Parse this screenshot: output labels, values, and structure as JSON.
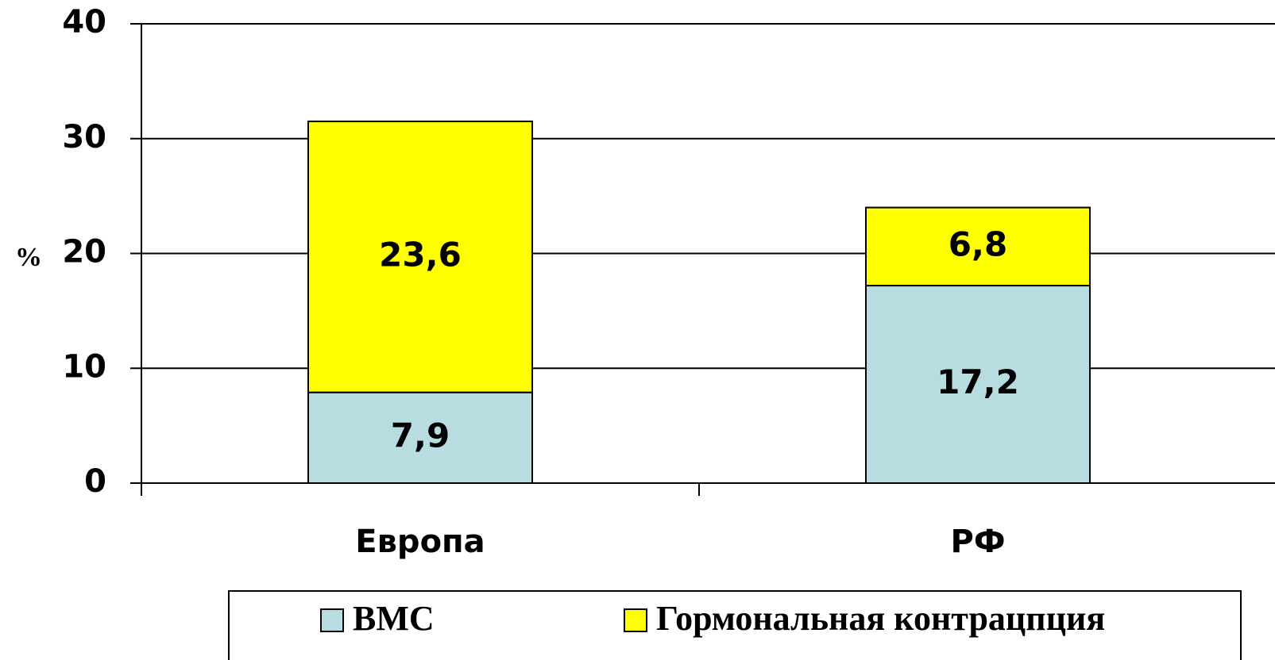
{
  "chart_data": {
    "type": "stacked_bar",
    "ylabel": "%",
    "categories": [
      "Европа",
      "РФ"
    ],
    "series": [
      {
        "name": "ВМС",
        "color": "#b7dde1",
        "values": [
          7.9,
          17.2
        ],
        "value_labels": [
          "7,9",
          "17,2"
        ]
      },
      {
        "name": "Гормональная контрацпция",
        "color": "#ffff00",
        "values": [
          23.6,
          6.8
        ],
        "value_labels": [
          "23,6",
          "6,8"
        ]
      }
    ],
    "ylim": [
      0,
      40
    ],
    "yticks": [
      0,
      10,
      20,
      30,
      40
    ],
    "grid": true,
    "legend": "bottom"
  }
}
